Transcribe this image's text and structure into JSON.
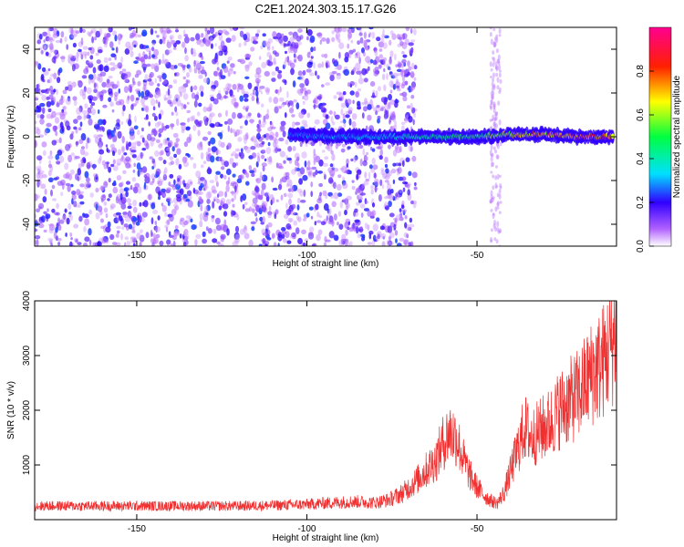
{
  "title": "C2E1.2024.303.15.17.G26",
  "chart_data": [
    {
      "type": "heatmap",
      "xlabel": "Height of straight line (km)",
      "ylabel": "Frequency (Hz)",
      "xlim": [
        -180,
        -9
      ],
      "ylim": [
        -50,
        50
      ],
      "xticks": [
        -150,
        -100,
        -50
      ],
      "yticks": [
        -40,
        -20,
        0,
        20,
        40
      ],
      "colorbar": {
        "label": "Normalized spectral amplitude",
        "range": [
          0,
          1
        ],
        "ticks": [
          "0.0",
          "0.2",
          "0.4",
          "0.6",
          "0.8"
        ],
        "colors": [
          "#ffffff",
          "#9b30ff",
          "#0000ff",
          "#00ffff",
          "#00ff00",
          "#ffff00",
          "#ff0000",
          "#ff0080"
        ]
      },
      "noise_region": {
        "x_from": -180,
        "x_to": -68,
        "amplitude": [
          0.05,
          0.25
        ]
      },
      "ridge": {
        "x": [
          -105,
          -90,
          -80,
          -70,
          -60,
          -50,
          -40,
          -30,
          -20,
          -10
        ],
        "frequency": [
          1,
          0,
          0,
          0,
          0,
          0,
          1,
          1,
          0,
          0
        ],
        "amplitude": [
          0.3,
          0.35,
          0.35,
          0.45,
          0.5,
          0.55,
          0.7,
          0.8,
          0.85,
          0.9
        ]
      },
      "grid": false
    },
    {
      "type": "line",
      "xlabel": "Height of straight line (km)",
      "ylabel": "SNR (10 * v/v)",
      "xlim": [
        -180,
        -9
      ],
      "ylim": [
        0,
        4000
      ],
      "xticks": [
        -150,
        -100,
        -50
      ],
      "yticks": [
        1000,
        2000,
        3000,
        4000
      ],
      "color": "#f03030",
      "series": [
        {
          "x": [
            -180,
            -170,
            -160,
            -150,
            -140,
            -130,
            -120,
            -110,
            -100,
            -95,
            -90,
            -85,
            -80,
            -76,
            -72,
            -68,
            -65,
            -62,
            -60,
            -58,
            -56,
            -54,
            -52,
            -50,
            -48,
            -46,
            -44,
            -42,
            -40,
            -38,
            -36,
            -34,
            -32,
            -30,
            -28,
            -26,
            -24,
            -22,
            -20,
            -18,
            -16,
            -14,
            -12,
            -10,
            -9
          ],
          "y": [
            250,
            250,
            250,
            250,
            250,
            250,
            250,
            260,
            280,
            300,
            320,
            330,
            310,
            360,
            480,
            700,
            900,
            1100,
            1400,
            1600,
            1500,
            1100,
            800,
            600,
            450,
            350,
            300,
            500,
            900,
            1300,
            1700,
            1500,
            1600,
            1700,
            1800,
            2000,
            2100,
            2200,
            2300,
            2500,
            2700,
            2800,
            3000,
            3300,
            3500
          ]
        }
      ],
      "grid": false
    }
  ]
}
